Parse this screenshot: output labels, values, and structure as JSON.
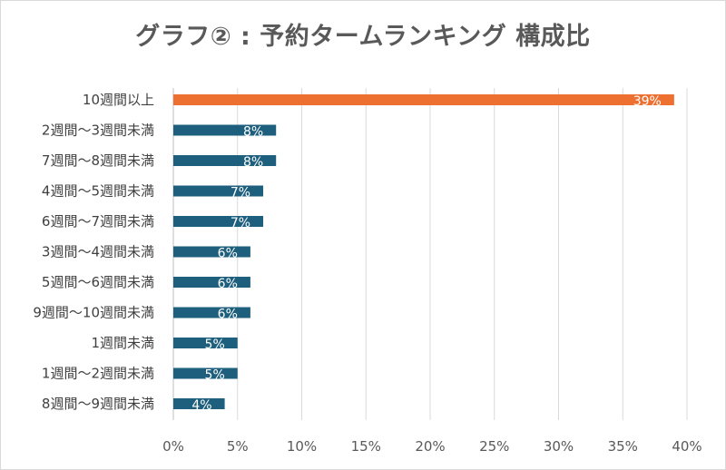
{
  "chart_data": {
    "type": "bar",
    "orientation": "horizontal",
    "title": "グラフ② : 予約タームランキング 構成比",
    "xlabel": "",
    "ylabel": "",
    "xlim": [
      0,
      40
    ],
    "x_ticks": [
      "0%",
      "5%",
      "10%",
      "15%",
      "20%",
      "25%",
      "30%",
      "35%",
      "40%"
    ],
    "grid": "vertical",
    "legend": "none",
    "categories": [
      "10週間以上",
      "2週間～3週間未満",
      "7週間～8週間未満",
      "4週間～5週間未満",
      "6週間～7週間未満",
      "3週間～4週間未満",
      "5週間～6週間未満",
      "9週間～10週間未満",
      "1週間未満",
      "1週間～2週間未満",
      "8週間～9週間未満"
    ],
    "values": [
      39,
      8,
      8,
      7,
      7,
      6,
      6,
      6,
      5,
      5,
      4
    ],
    "data_labels": [
      "39%",
      "8%",
      "8%",
      "7%",
      "7%",
      "6%",
      "6%",
      "6%",
      "5%",
      "5%",
      "4%"
    ],
    "colors": {
      "highlight": "#ed7031",
      "default": "#1e5f7e",
      "grid": "#d9d9d9",
      "axis": "#bfbfbf"
    },
    "highlight_index": 0
  }
}
